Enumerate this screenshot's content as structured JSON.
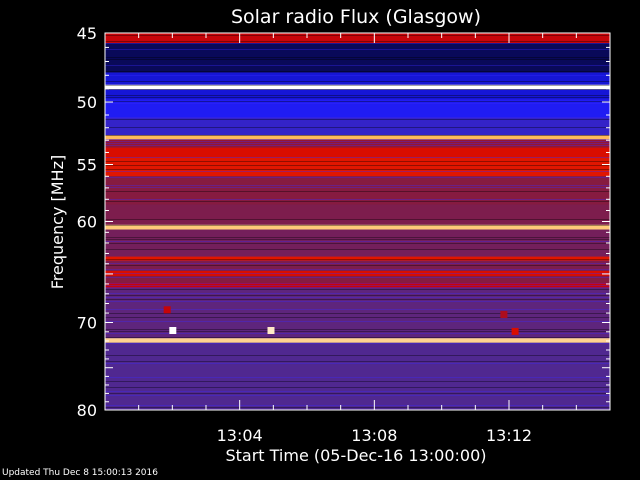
{
  "chart_data": {
    "type": "heatmap",
    "title": "Solar radio Flux (Glasgow)",
    "xlabel": "Start Time (05-Dec-16 13:00:00)",
    "ylabel": "Frequency [MHz]",
    "x_range": [
      "13:00:00",
      "13:15:00"
    ],
    "y_range": [
      45,
      80
    ],
    "y_scale": "log",
    "x_ticks": [
      "13:04",
      "13:08",
      "13:12"
    ],
    "y_ticks": [
      45,
      50,
      55,
      60,
      70,
      80
    ],
    "colormap": [
      "#000000",
      "#1a1aff",
      "#4a2a9a",
      "#8a1a3a",
      "#d00000",
      "#ff4000",
      "#ffc060",
      "#ffffff"
    ],
    "bands": [
      {
        "from": 45.0,
        "to": 45.7,
        "level": 0.55
      },
      {
        "from": 45.7,
        "to": 47.8,
        "level": 0.05
      },
      {
        "from": 47.8,
        "to": 48.7,
        "level": 0.12
      },
      {
        "from": 48.7,
        "to": 49.05,
        "level": 1.0
      },
      {
        "from": 49.05,
        "to": 49.8,
        "level": 0.12
      },
      {
        "from": 49.8,
        "to": 51.2,
        "level": 0.16
      },
      {
        "from": 51.2,
        "to": 52.6,
        "level": 0.22
      },
      {
        "from": 52.6,
        "to": 52.95,
        "level": 0.85
      },
      {
        "from": 52.95,
        "to": 53.6,
        "level": 0.45
      },
      {
        "from": 53.6,
        "to": 54.4,
        "level": 0.6
      },
      {
        "from": 54.4,
        "to": 56.0,
        "level": 0.62
      },
      {
        "from": 56.0,
        "to": 58.5,
        "level": 0.42
      },
      {
        "from": 58.5,
        "to": 60.3,
        "level": 0.4
      },
      {
        "from": 60.3,
        "to": 60.75,
        "level": 0.88
      },
      {
        "from": 60.75,
        "to": 63.3,
        "level": 0.38
      },
      {
        "from": 63.3,
        "to": 63.7,
        "level": 0.62
      },
      {
        "from": 63.7,
        "to": 64.7,
        "level": 0.4
      },
      {
        "from": 64.7,
        "to": 65.2,
        "level": 0.6
      },
      {
        "from": 65.2,
        "to": 65.9,
        "level": 0.42
      },
      {
        "from": 65.9,
        "to": 66.4,
        "level": 0.55
      },
      {
        "from": 66.4,
        "to": 71.7,
        "level": 0.33
      },
      {
        "from": 71.7,
        "to": 72.2,
        "level": 0.9
      },
      {
        "from": 72.2,
        "to": 80.0,
        "level": 0.3
      }
    ],
    "bursts": [
      {
        "time": "13:02:00",
        "freq": 70.8,
        "level": 1.0
      },
      {
        "time": "13:04:55",
        "freq": 70.8,
        "level": 0.95
      },
      {
        "time": "13:12:10",
        "freq": 70.9,
        "level": 0.6
      },
      {
        "time": "13:01:50",
        "freq": 68.6,
        "level": 0.55
      },
      {
        "time": "13:11:50",
        "freq": 69.1,
        "level": 0.5
      }
    ]
  },
  "footer": {
    "updated": "Updated Thu Dec  8 15:00:13 2016"
  }
}
